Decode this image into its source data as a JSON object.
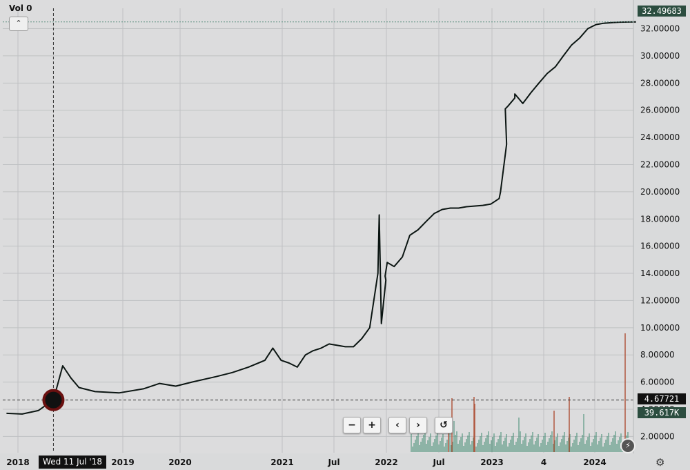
{
  "header": {
    "volume_label": "Vol  0",
    "collapse_icon": "chevron-up-icon"
  },
  "crosshair": {
    "date_label": "Wed 11 Jul '18",
    "price_label": "4.67721",
    "volume_label": "39.617K"
  },
  "last_price": {
    "label": "32.49683"
  },
  "controls": {
    "zoom_out": "−",
    "zoom_in": "+",
    "scroll_left": "‹",
    "scroll_right": "›",
    "reset": "↺"
  },
  "colors": {
    "price_line": "#0b1512",
    "last_price_bg": "#2b4d3f",
    "volume_bars": "#3e8a6f",
    "volume_spike": "#b0563e"
  },
  "chart_data": {
    "type": "line",
    "y_ticks": [
      "2.00000",
      "4.00000",
      "6.00000",
      "8.00000",
      "10.00000",
      "12.00000",
      "14.00000",
      "16.00000",
      "18.00000",
      "20.00000",
      "22.00000",
      "24.00000",
      "26.00000",
      "28.00000",
      "30.00000",
      "32.00000"
    ],
    "x_ticks": [
      "2018",
      "2019",
      "2020",
      "2021",
      "Jul",
      "2022",
      "Jul",
      "2023",
      "4",
      "2024"
    ],
    "ylim": [
      0.8,
      33.5
    ],
    "x_range": [
      "2018-01-01",
      "2024-07-05"
    ],
    "series": [
      {
        "x": [
          "2018-01",
          "2018-03",
          "2018-05",
          "2018-07-11",
          "2018-08",
          "2018-09",
          "2018-10",
          "2018-12",
          "2019-03",
          "2019-06",
          "2019-08",
          "2019-10",
          "2019-12",
          "2020-03",
          "2020-05",
          "2020-07",
          "2020-09",
          "2020-10",
          "2020-11",
          "2020-12",
          "2021-01",
          "2021-02",
          "2021-03",
          "2021-04",
          "2021-05",
          "2021-06",
          "2021-07",
          "2021-08",
          "2021-09",
          "2021-10",
          "2021-11",
          "2021-11-20",
          "2021-11-28",
          "2021-12",
          "2021-12-12",
          "2021-12-20",
          "2022-01",
          "2022-02",
          "2022-03",
          "2022-04",
          "2022-05",
          "2022-06",
          "2022-07",
          "2022-08",
          "2022-09",
          "2022-10",
          "2022-12",
          "2023-01",
          "2023-02",
          "2023-02-20",
          "2023-03",
          "2023-03-10",
          "2023-03-20",
          "2023-04",
          "2023-04-15",
          "2023-05",
          "2023-06",
          "2023-07",
          "2023-08",
          "2023-09",
          "2023-10",
          "2023-11",
          "2023-12",
          "2024-01",
          "2024-02",
          "2024-03",
          "2024-04",
          "2024-05",
          "2024-06",
          "2024-07"
        ],
        "y": [
          3.7,
          3.65,
          3.9,
          4.68,
          7.2,
          6.3,
          5.6,
          5.3,
          5.2,
          5.5,
          5.9,
          5.7,
          6.0,
          6.4,
          6.7,
          7.1,
          7.6,
          8.5,
          7.6,
          7.4,
          7.1,
          8.0,
          8.3,
          8.5,
          8.8,
          8.7,
          8.6,
          8.6,
          9.2,
          10.0,
          14.0,
          18.3,
          10.3,
          13.5,
          13.8,
          14.8,
          14.5,
          15.2,
          16.8,
          17.2,
          17.8,
          18.4,
          18.7,
          18.8,
          18.8,
          18.9,
          19.0,
          19.1,
          19.5,
          20.0,
          23.5,
          26.1,
          26.3,
          26.9,
          27.2,
          26.5,
          27.3,
          28.0,
          28.7,
          29.2,
          30.0,
          30.8,
          31.3,
          32.0,
          32.3,
          32.4,
          32.45,
          32.48,
          32.49,
          32.49683
        ]
      }
    ]
  }
}
